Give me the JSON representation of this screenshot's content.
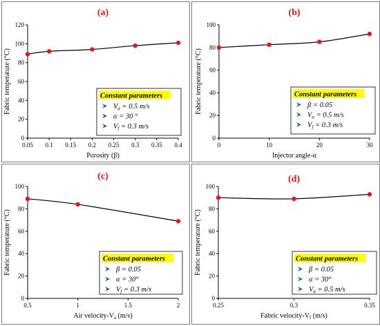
{
  "chart_data": [
    {
      "type": "line",
      "panel_label": "(a)",
      "xlabel": "Porosity (β)",
      "ylabel": "Fabric temperature (°C)",
      "xlim": [
        0.05,
        0.4
      ],
      "ylim": [
        0,
        120
      ],
      "xticks": [
        0.05,
        0.1,
        0.15,
        0.2,
        0.25,
        0.3,
        0.35,
        0.4
      ],
      "xtick_labels": [
        "0.05",
        "0.1",
        "0.15",
        "0.2",
        "0.25",
        "0.3",
        "0.35",
        "0.4"
      ],
      "yticks": [
        0,
        20,
        40,
        60,
        80,
        100,
        120
      ],
      "ytick_labels": [
        "0",
        "20",
        "40",
        "60",
        "80",
        "100",
        "120"
      ],
      "x": [
        0.05,
        0.1,
        0.2,
        0.3,
        0.4
      ],
      "y": [
        89,
        92,
        94,
        98,
        101
      ],
      "params_title": "Constant parameters",
      "params": [
        {
          "sym": "V",
          "sub": "a",
          "rest": " = 0.5 m/s"
        },
        {
          "sym": "α",
          "sub": "",
          "rest": " = 30 °"
        },
        {
          "sym": "V",
          "sub": "f",
          "rest": " = 0.3 m/s"
        }
      ],
      "colors": {
        "line": "#000000",
        "marker": "#e8141b",
        "highlight": "#ffff00"
      }
    },
    {
      "type": "line",
      "panel_label": "(b)",
      "xlabel": "Injector angle-α",
      "ylabel": "Fabric temperature (°C)",
      "xlim": [
        0,
        30
      ],
      "ylim": [
        0,
        100
      ],
      "xticks": [
        0,
        10,
        20,
        30
      ],
      "xtick_labels": [
        "0",
        "10",
        "20",
        "30"
      ],
      "yticks": [
        0,
        20,
        40,
        60,
        80,
        100
      ],
      "ytick_labels": [
        "0",
        "20",
        "40",
        "60",
        "80",
        "100"
      ],
      "x": [
        0,
        10,
        20,
        30
      ],
      "y": [
        80,
        82.5,
        85,
        92
      ],
      "params_title": "Constant parameters",
      "params": [
        {
          "sym": "β",
          "sub": "",
          "rest": " = 0.05"
        },
        {
          "sym": "V",
          "sub": "a",
          "rest": " = 0.5 m/s"
        },
        {
          "sym": "V",
          "sub": "f",
          "rest": " = 0.3 m/s"
        }
      ],
      "colors": {
        "line": "#000000",
        "marker": "#e8141b",
        "highlight": "#ffff00"
      }
    },
    {
      "type": "line",
      "panel_label": "(c)",
      "xlabel": "Air velocity-V",
      "xlabel_sub": "a",
      "xlabel_unit": " (m/s)",
      "ylabel": "Fabric temperature (°C)",
      "xlim": [
        0.5,
        2
      ],
      "ylim": [
        0,
        100
      ],
      "xticks": [
        0.5,
        1,
        1.5,
        2
      ],
      "xtick_labels": [
        "0.5",
        "1",
        "1.5",
        "2"
      ],
      "yticks": [
        0,
        20,
        40,
        60,
        80,
        100
      ],
      "ytick_labels": [
        "0",
        "20",
        "40",
        "60",
        "80",
        "100"
      ],
      "x": [
        0.5,
        1,
        2
      ],
      "y": [
        89,
        84,
        69
      ],
      "params_title": "Constant parameters",
      "params": [
        {
          "sym": "β",
          "sub": "",
          "rest": " = 0.05"
        },
        {
          "sym": "α",
          "sub": "",
          "rest": " = 30°"
        },
        {
          "sym": "V",
          "sub": "f",
          "rest": " = 0.3 m/s"
        }
      ],
      "colors": {
        "line": "#000000",
        "marker": "#e8141b",
        "highlight": "#ffff00"
      }
    },
    {
      "type": "line",
      "panel_label": "(d)",
      "xlabel": "Fabric velocity-V",
      "xlabel_sub": "f",
      "xlabel_unit": " (m/s)",
      "ylabel": "Fabric temperature (°C)",
      "xlim": [
        0.25,
        0.35
      ],
      "ylim": [
        0,
        100
      ],
      "xticks": [
        0.25,
        0.3,
        0.35
      ],
      "xtick_labels": [
        "0.25",
        "0.3",
        "0.35"
      ],
      "yticks": [
        0,
        20,
        40,
        60,
        80,
        100
      ],
      "ytick_labels": [
        "0",
        "20",
        "40",
        "60",
        "80",
        "100"
      ],
      "x": [
        0.25,
        0.3,
        0.35
      ],
      "y": [
        90,
        89,
        93
      ],
      "params_title": "Constant parameters",
      "params": [
        {
          "sym": "β",
          "sub": "",
          "rest": " = 0.05"
        },
        {
          "sym": "α",
          "sub": "",
          "rest": " = 30°"
        },
        {
          "sym": "V",
          "sub": "a",
          "rest": " = 0.5 m/s"
        }
      ],
      "colors": {
        "line": "#000000",
        "marker": "#e8141b",
        "highlight": "#ffff00"
      }
    }
  ]
}
